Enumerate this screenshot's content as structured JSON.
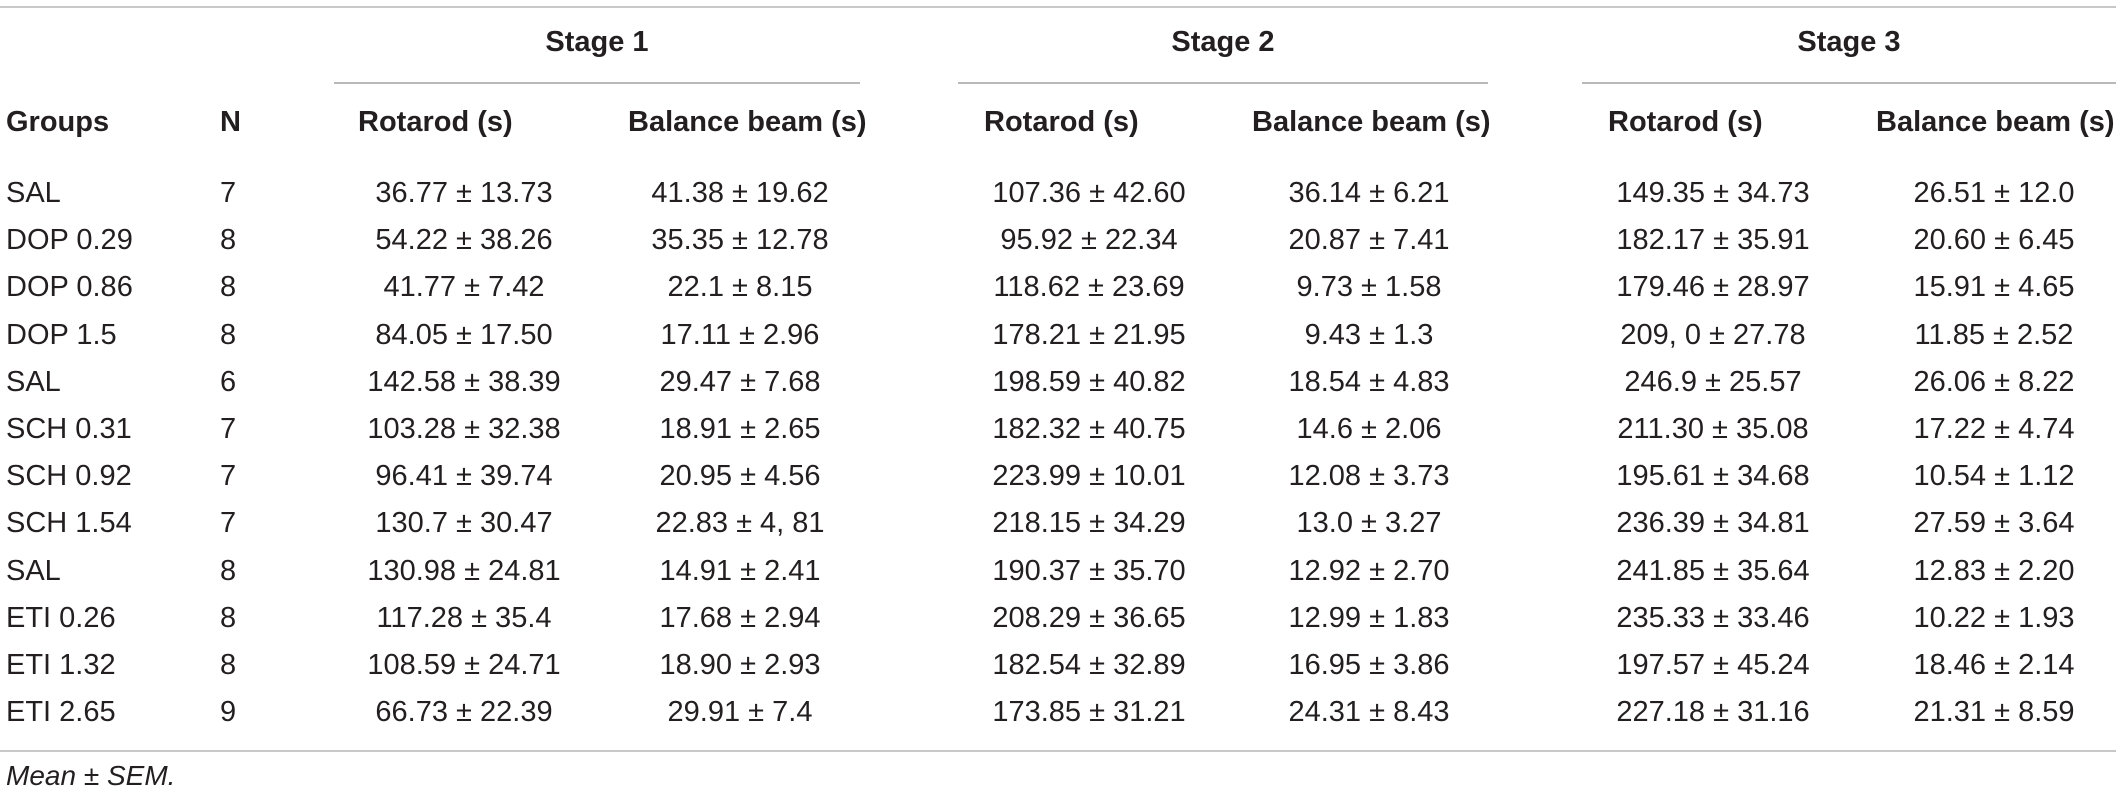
{
  "stages": [
    "Stage 1",
    "Stage 2",
    "Stage 3"
  ],
  "columns": {
    "groups": "Groups",
    "n": "N",
    "s1_rotarod": "Rotarod (s)",
    "s1_beam": "Balance beam (s)",
    "s2_rotarod": "Rotarod (s)",
    "s2_beam": "Balance beam (s)",
    "s3_rotarod": "Rotarod (s)",
    "s3_beam": "Balance beam (s)"
  },
  "rows": [
    [
      "SAL",
      "7",
      "36.77 ± 13.73",
      "41.38 ± 19.62",
      "107.36 ± 42.60",
      "36.14 ± 6.21",
      "149.35 ± 34.73",
      "26.51 ± 12.0"
    ],
    [
      "DOP 0.29",
      "8",
      "54.22 ± 38.26",
      "35.35 ± 12.78",
      "95.92 ± 22.34",
      "20.87 ± 7.41",
      "182.17 ± 35.91",
      "20.60 ± 6.45"
    ],
    [
      "DOP 0.86",
      "8",
      "41.77 ± 7.42",
      "22.1 ± 8.15",
      "118.62 ± 23.69",
      "9.73 ± 1.58",
      "179.46 ± 28.97",
      "15.91 ± 4.65"
    ],
    [
      "DOP 1.5",
      "8",
      "84.05 ± 17.50",
      "17.11 ± 2.96",
      "178.21 ± 21.95",
      "9.43 ± 1.3",
      "209, 0 ± 27.78",
      "11.85 ± 2.52"
    ],
    [
      "SAL",
      "6",
      "142.58 ± 38.39",
      "29.47 ± 7.68",
      "198.59 ± 40.82",
      "18.54 ± 4.83",
      "246.9 ± 25.57",
      "26.06 ± 8.22"
    ],
    [
      "SCH 0.31",
      "7",
      "103.28 ± 32.38",
      "18.91 ± 2.65",
      "182.32 ± 40.75",
      "14.6 ± 2.06",
      "211.30 ± 35.08",
      "17.22 ± 4.74"
    ],
    [
      "SCH 0.92",
      "7",
      "96.41 ± 39.74",
      "20.95 ± 4.56",
      "223.99 ± 10.01",
      "12.08 ± 3.73",
      "195.61 ± 34.68",
      "10.54 ± 1.12"
    ],
    [
      "SCH 1.54",
      "7",
      "130.7 ± 30.47",
      "22.83 ± 4, 81",
      "218.15 ± 34.29",
      "13.0 ± 3.27",
      "236.39 ± 34.81",
      "27.59 ± 3.64"
    ],
    [
      "SAL",
      "8",
      "130.98 ± 24.81",
      "14.91 ± 2.41",
      "190.37 ± 35.70",
      "12.92 ± 2.70",
      "241.85 ± 35.64",
      "12.83 ± 2.20"
    ],
    [
      "ETI 0.26",
      "8",
      "117.28 ± 35.4",
      "17.68 ± 2.94",
      "208.29 ± 36.65",
      "12.99 ± 1.83",
      "235.33 ± 33.46",
      "10.22 ± 1.93"
    ],
    [
      "ETI 1.32",
      "8",
      "108.59 ± 24.71",
      "18.90 ± 2.93",
      "182.54 ± 32.89",
      "16.95 ± 3.86",
      "197.57 ± 45.24",
      "18.46 ± 2.14"
    ],
    [
      "ETI 2.65",
      "9",
      "66.73 ± 22.39",
      "29.91 ± 7.4",
      "173.85 ± 31.21",
      "24.31 ± 8.43",
      "227.18 ± 31.16",
      "21.31 ± 8.59"
    ]
  ],
  "footnote": "Mean ± SEM."
}
